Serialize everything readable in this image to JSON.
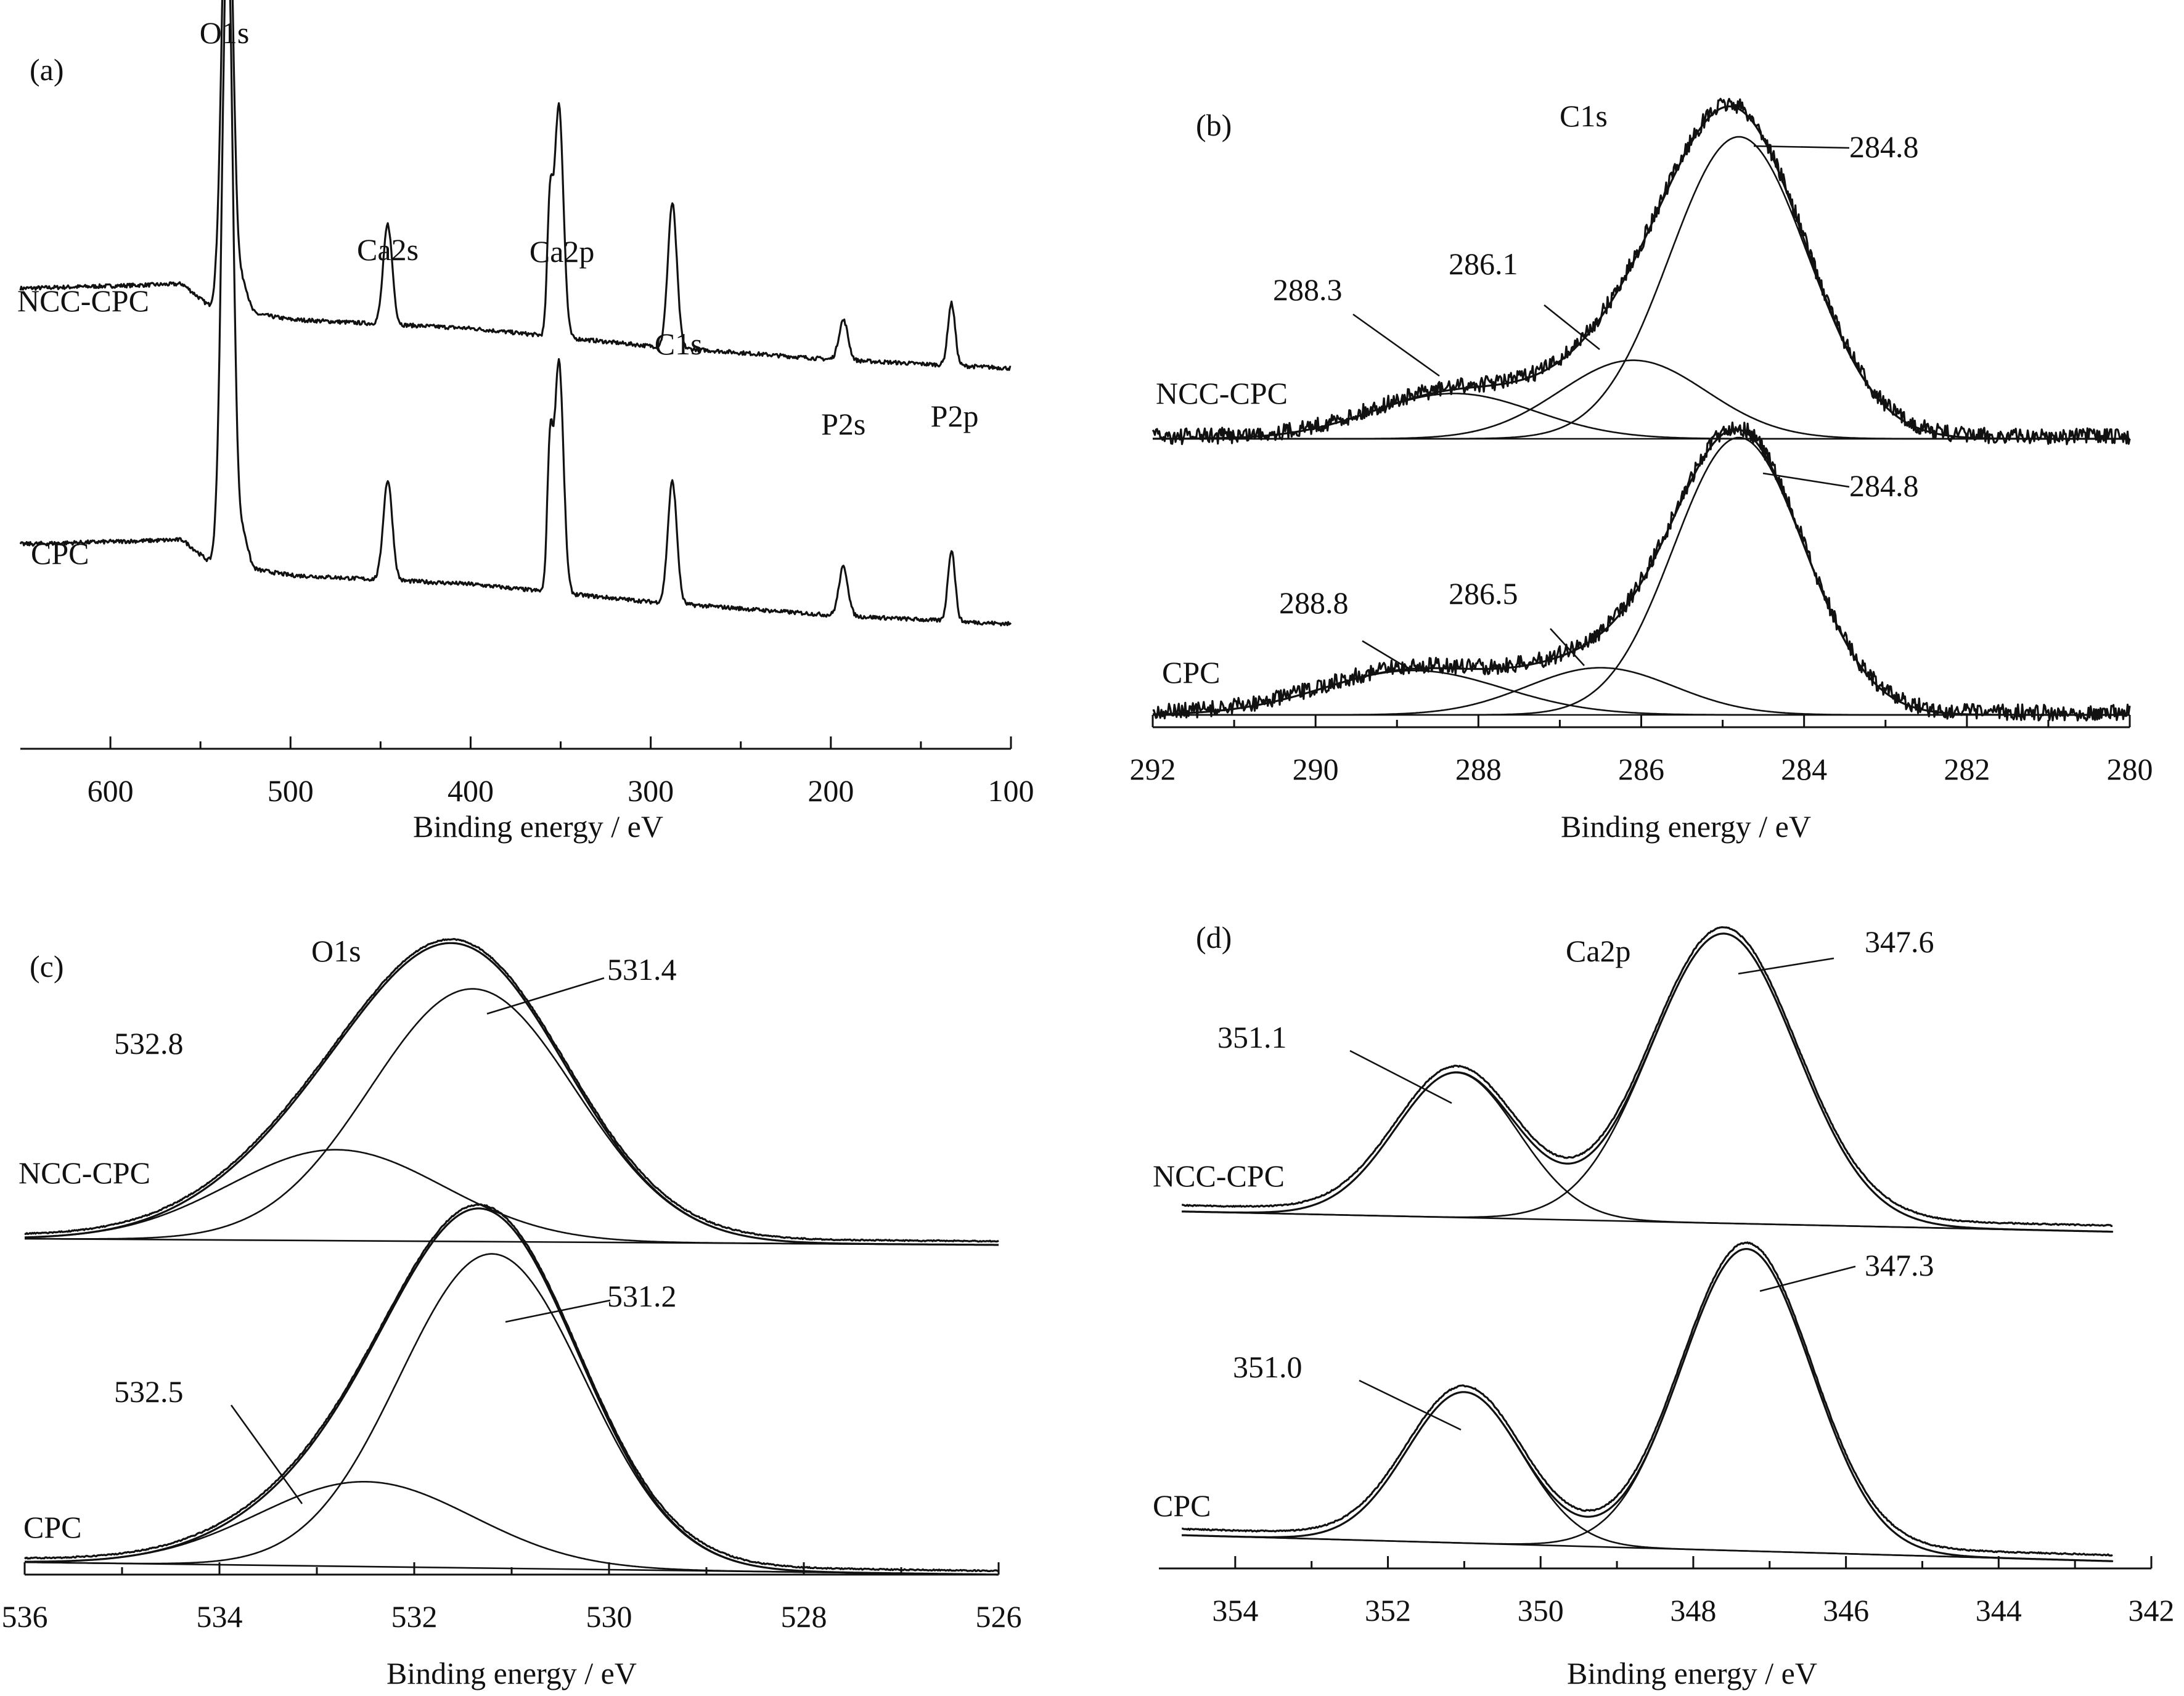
{
  "chart_data": [
    {
      "panel": "(a)",
      "type": "line",
      "title": "",
      "xlabel": "Binding energy / eV",
      "ylabel": "",
      "xlim": [
        650,
        100
      ],
      "x_ticks": [
        600,
        500,
        400,
        300,
        200,
        100
      ],
      "grid": false,
      "series": [
        {
          "name": "NCC-CPC",
          "level_norm": 0.0,
          "baseline": [
            [
              650,
              0.2
            ],
            [
              560,
              0.22
            ],
            [
              545,
              0.12
            ],
            [
              500,
              0.06
            ],
            [
              400,
              0.02
            ],
            [
              300,
              -0.06
            ],
            [
              200,
              -0.12
            ],
            [
              100,
              -0.16
            ]
          ],
          "peaks": [
            [
              535,
              2.2,
              3
            ],
            [
              526,
              0.12,
              2.5
            ],
            [
              446,
              0.45,
              2.5
            ],
            [
              351,
              1.05,
              2.5
            ],
            [
              356,
              0.55,
              1.5
            ],
            [
              288,
              0.65,
              2.5
            ],
            [
              193,
              0.18,
              2.5
            ],
            [
              133,
              0.28,
              2
            ]
          ]
        },
        {
          "name": "CPC",
          "level_norm": 0.0,
          "baseline": [
            [
              650,
              0.2
            ],
            [
              560,
              0.22
            ],
            [
              545,
              0.12
            ],
            [
              500,
              0.06
            ],
            [
              400,
              0.02
            ],
            [
              300,
              -0.06
            ],
            [
              200,
              -0.12
            ],
            [
              100,
              -0.16
            ]
          ],
          "peaks": [
            [
              535,
              2.9,
              3
            ],
            [
              526,
              0.14,
              2.5
            ],
            [
              446,
              0.45,
              2.5
            ],
            [
              351,
              1.05,
              2.5
            ],
            [
              356,
              0.6,
              1.5
            ],
            [
              288,
              0.55,
              2.5
            ],
            [
              193,
              0.22,
              2.5
            ],
            [
              133,
              0.32,
              2
            ]
          ]
        }
      ],
      "annotations": [
        {
          "text": "O1s",
          "x": 535
        },
        {
          "text": "Ca2s",
          "x": 446
        },
        {
          "text": "Ca2p",
          "x": 351
        },
        {
          "text": "C1s",
          "x": 288
        },
        {
          "text": "P2s",
          "x": 193
        },
        {
          "text": "P2p",
          "x": 133
        }
      ]
    },
    {
      "panel": "(b)",
      "type": "line",
      "title": "",
      "spectrum_label": "C1s",
      "xlabel": "Binding energy / eV",
      "xlim": [
        292,
        280
      ],
      "x_ticks": [
        292,
        290,
        288,
        286,
        284,
        282,
        280
      ],
      "grid": false,
      "series": [
        {
          "name": "NCC-CPC",
          "components": [
            {
              "center": 284.8,
              "height": 1.0,
              "sigma": 0.85
            },
            {
              "center": 286.1,
              "height": 0.26,
              "sigma": 0.9
            },
            {
              "center": 288.3,
              "height": 0.15,
              "sigma": 1.0
            }
          ]
        },
        {
          "name": "CPC",
          "components": [
            {
              "center": 284.8,
              "height": 1.0,
              "sigma": 0.8
            },
            {
              "center": 286.5,
              "height": 0.17,
              "sigma": 0.9
            },
            {
              "center": 288.8,
              "height": 0.16,
              "sigma": 1.1
            }
          ]
        }
      ],
      "annotations": [
        {
          "text": "284.8",
          "series": "NCC-CPC"
        },
        {
          "text": "286.1",
          "series": "NCC-CPC"
        },
        {
          "text": "288.3",
          "series": "NCC-CPC"
        },
        {
          "text": "284.8",
          "series": "CPC"
        },
        {
          "text": "286.5",
          "series": "CPC"
        },
        {
          "text": "288.8",
          "series": "CPC"
        }
      ]
    },
    {
      "panel": "(c)",
      "type": "line",
      "title": "",
      "spectrum_label": "O1s",
      "xlabel": "Binding energy / eV",
      "xlim": [
        536,
        526
      ],
      "x_ticks": [
        536,
        534,
        532,
        530,
        528,
        526
      ],
      "grid": false,
      "series": [
        {
          "name": "NCC-CPC",
          "components": [
            {
              "center": 531.4,
              "height": 1.0,
              "sigma": 1.05
            },
            {
              "center": 532.8,
              "height": 0.36,
              "sigma": 1.1
            }
          ]
        },
        {
          "name": "CPC",
          "components": [
            {
              "center": 531.2,
              "height": 1.0,
              "sigma": 0.95
            },
            {
              "center": 532.5,
              "height": 0.27,
              "sigma": 1.1
            }
          ]
        }
      ],
      "annotations": [
        {
          "text": "531.4",
          "series": "NCC-CPC"
        },
        {
          "text": "532.8",
          "series": "NCC-CPC"
        },
        {
          "text": "531.2",
          "series": "CPC"
        },
        {
          "text": "532.5",
          "series": "CPC"
        }
      ]
    },
    {
      "panel": "(d)",
      "type": "line",
      "title": "",
      "spectrum_label": "Ca2p",
      "xlabel": "Binding energy / eV",
      "xlim": [
        355,
        342
      ],
      "x_ticks": [
        354,
        352,
        350,
        348,
        346,
        344,
        342
      ],
      "grid": false,
      "series": [
        {
          "name": "NCC-CPC",
          "components": [
            {
              "center": 347.6,
              "height": 1.0,
              "sigma": 0.95
            },
            {
              "center": 351.1,
              "height": 0.5,
              "sigma": 0.8
            }
          ]
        },
        {
          "name": "CPC",
          "components": [
            {
              "center": 347.3,
              "height": 1.0,
              "sigma": 0.85
            },
            {
              "center": 351.0,
              "height": 0.5,
              "sigma": 0.75
            }
          ]
        }
      ],
      "annotations": [
        {
          "text": "347.6",
          "series": "NCC-CPC"
        },
        {
          "text": "351.1",
          "series": "NCC-CPC"
        },
        {
          "text": "347.3",
          "series": "CPC"
        },
        {
          "text": "351.0",
          "series": "CPC"
        }
      ]
    }
  ]
}
